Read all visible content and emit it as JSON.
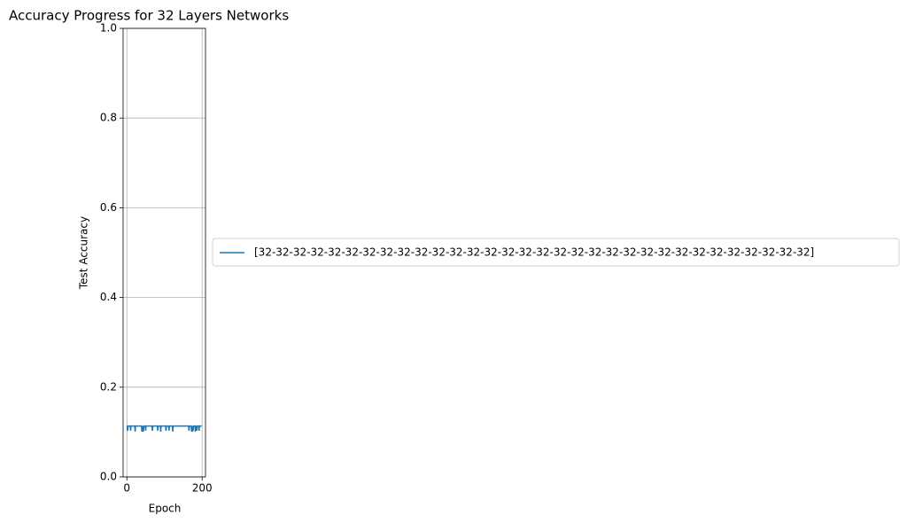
{
  "chart_data": {
    "type": "line",
    "title": "Accuracy Progress for 32 Layers Networks",
    "x_label": "Epoch",
    "y_label": "Test Accuracy",
    "xlim": [
      -9.95,
      208.95
    ],
    "xticks": [
      0,
      200
    ],
    "ylim": [
      0,
      1
    ],
    "yticks": [
      {
        "value": 0,
        "label": "0.0"
      },
      0.2,
      0.4,
      0.6,
      0.8,
      {
        "value": 1,
        "label": "1.0"
      }
    ],
    "grid": true,
    "legend": "center left outside",
    "series": [
      {
        "name": "[32-32-32-32-32-32-32-32-32-32-32-32-32-32-32-32-32-32-32-32-32-32-32-32-32-32-32-32-32-32-32-32]",
        "color": "#1f77b4",
        "x": [
          0,
          1,
          2,
          3,
          4,
          5,
          6,
          7,
          8,
          9,
          10,
          11,
          12,
          13,
          14,
          15,
          16,
          17,
          18,
          19,
          20,
          21,
          22,
          23,
          24,
          25,
          26,
          27,
          28,
          29,
          30,
          31,
          32,
          33,
          34,
          35,
          36,
          37,
          38,
          39,
          40,
          41,
          42,
          43,
          44,
          45,
          46,
          47,
          48,
          49,
          50,
          51,
          52,
          53,
          54,
          55,
          56,
          57,
          58,
          59,
          60,
          61,
          62,
          63,
          64,
          65,
          66,
          67,
          68,
          69,
          70,
          71,
          72,
          73,
          74,
          75,
          76,
          77,
          78,
          79,
          80,
          81,
          82,
          83,
          84,
          85,
          86,
          87,
          88,
          89,
          90,
          91,
          92,
          93,
          94,
          95,
          96,
          97,
          98,
          99,
          100,
          101,
          102,
          103,
          104,
          105,
          106,
          107,
          108,
          109,
          110,
          111,
          112,
          113,
          114,
          115,
          116,
          117,
          118,
          119,
          120,
          121,
          122,
          123,
          124,
          125,
          126,
          127,
          128,
          129,
          130,
          131,
          132,
          133,
          134,
          135,
          136,
          137,
          138,
          139,
          140,
          141,
          142,
          143,
          144,
          145,
          146,
          147,
          148,
          149,
          150,
          151,
          152,
          153,
          154,
          155,
          156,
          157,
          158,
          159,
          160,
          161,
          162,
          163,
          164,
          165,
          166,
          167,
          168,
          169,
          170,
          171,
          172,
          173,
          174,
          175,
          176,
          177,
          178,
          179,
          180,
          181,
          182,
          183,
          184,
          185,
          186,
          187,
          188,
          189,
          190,
          191,
          192,
          193,
          194,
          195,
          196,
          197,
          198,
          199
        ],
        "values": [
          0.1135,
          0.1135,
          0.1028,
          0.1135,
          0.1135,
          0.1135,
          0.1135,
          0.1135,
          0.1135,
          0.1135,
          0.1032,
          0.1135,
          0.1135,
          0.1135,
          0.1135,
          0.1135,
          0.1135,
          0.1135,
          0.1135,
          0.1135,
          0.1135,
          0.1135,
          0.101,
          0.1135,
          0.1135,
          0.1135,
          0.1135,
          0.1135,
          0.1135,
          0.1135,
          0.1135,
          0.1135,
          0.1135,
          0.1135,
          0.1135,
          0.1135,
          0.1135,
          0.1135,
          0.1135,
          0.1135,
          0.1009,
          0.1135,
          0.1028,
          0.1135,
          0.1009,
          0.1135,
          0.1135,
          0.1135,
          0.1135,
          0.1135,
          0.1032,
          0.1135,
          0.1135,
          0.1135,
          0.1135,
          0.1135,
          0.1135,
          0.1135,
          0.1135,
          0.1135,
          0.1135,
          0.1135,
          0.1135,
          0.1135,
          0.1135,
          0.1135,
          0.1135,
          0.1135,
          0.1028,
          0.1135,
          0.1135,
          0.1135,
          0.1135,
          0.1135,
          0.1135,
          0.1135,
          0.1135,
          0.1135,
          0.1135,
          0.1135,
          0.1135,
          0.1135,
          0.1032,
          0.1135,
          0.1135,
          0.1135,
          0.1135,
          0.1135,
          0.1135,
          0.1135,
          0.101,
          0.1135,
          0.1135,
          0.1135,
          0.1135,
          0.1135,
          0.1135,
          0.1135,
          0.1135,
          0.1135,
          0.1135,
          0.1135,
          0.1135,
          0.1135,
          0.1028,
          0.1135,
          0.1135,
          0.1135,
          0.1135,
          0.1135,
          0.1135,
          0.1135,
          0.1032,
          0.1135,
          0.1135,
          0.1135,
          0.1135,
          0.1135,
          0.1135,
          0.1135,
          0.1135,
          0.1135,
          0.101,
          0.1135,
          0.1135,
          0.1135,
          0.1135,
          0.1135,
          0.1135,
          0.1135,
          0.1135,
          0.1135,
          0.1135,
          0.1135,
          0.1135,
          0.1135,
          0.1135,
          0.1135,
          0.1135,
          0.1135,
          0.1135,
          0.1135,
          0.1135,
          0.1135,
          0.1135,
          0.1135,
          0.1135,
          0.1135,
          0.1135,
          0.1135,
          0.1135,
          0.1135,
          0.1135,
          0.1135,
          0.1135,
          0.1135,
          0.1135,
          0.1135,
          0.1135,
          0.1135,
          0.1135,
          0.1135,
          0.1135,
          0.1135,
          0.1135,
          0.1028,
          0.1135,
          0.1135,
          0.1135,
          0.1135,
          0.1135,
          0.1135,
          0.1009,
          0.1135,
          0.101,
          0.1135,
          0.1028,
          0.1135,
          0.1135,
          0.1135,
          0.1135,
          0.1135,
          0.1009,
          0.1135,
          0.1135,
          0.1135,
          0.1032,
          0.1135,
          0.1135,
          0.1135,
          0.1135,
          0.1135,
          0.1028,
          0.1135,
          0.1135,
          0.1135,
          0.1135,
          0.1135,
          0.1135,
          0.1135
        ]
      }
    ]
  }
}
